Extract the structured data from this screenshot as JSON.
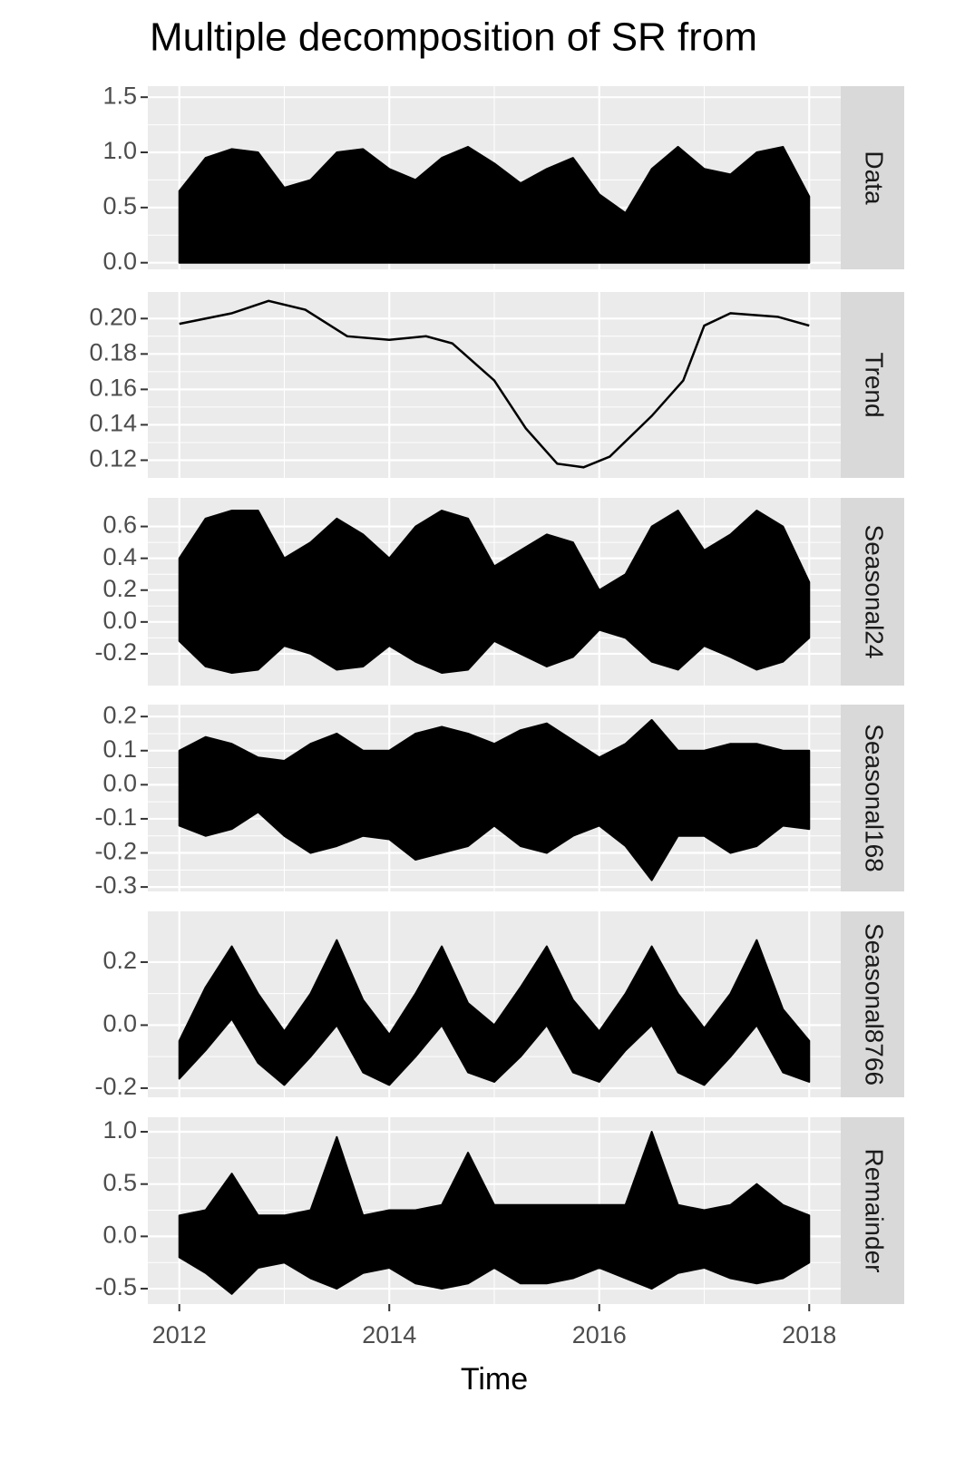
{
  "chart_data": [
    {
      "type": "band",
      "title": "Multiple decomposition of  SR from",
      "strip": "Data",
      "ylim": [
        -0.06,
        1.6
      ],
      "yticks": [
        {
          "value": 0,
          "label": "0.0"
        },
        0.5,
        {
          "value": 1,
          "label": "1.0"
        },
        1.5
      ],
      "x": [
        2012,
        2012.25,
        2012.5,
        2012.75,
        2013,
        2013.25,
        2013.5,
        2013.75,
        2014,
        2014.25,
        2014.5,
        2014.75,
        2015,
        2015.25,
        2015.5,
        2015.75,
        2016,
        2016.25,
        2016.5,
        2016.75,
        2017,
        2017.25,
        2017.5,
        2017.75,
        2018
      ],
      "high": [
        0.65,
        0.95,
        1.03,
        1.0,
        0.68,
        0.75,
        1.0,
        1.03,
        0.85,
        0.75,
        0.95,
        1.05,
        0.9,
        0.72,
        0.85,
        0.95,
        0.62,
        0.45,
        0.85,
        1.05,
        0.85,
        0.8,
        1.0,
        1.05,
        0.6
      ],
      "low": [
        0,
        0,
        0,
        0,
        0,
        0,
        0,
        0,
        0,
        0,
        0,
        0,
        0,
        0,
        0,
        0,
        0,
        0,
        0,
        0,
        0,
        0,
        0,
        0,
        0
      ],
      "color": "#000000"
    },
    {
      "type": "line",
      "strip": "Trend",
      "ylim": [
        0.11,
        0.215
      ],
      "yticks": [
        0.12,
        0.14,
        0.16,
        0.18,
        {
          "value": 0.2,
          "label": "0.20"
        }
      ],
      "x": [
        2012,
        2012.5,
        2012.85,
        2013.2,
        2013.6,
        2014.0,
        2014.35,
        2014.6,
        2015.0,
        2015.3,
        2015.6,
        2015.85,
        2016.1,
        2016.5,
        2016.8,
        2017.0,
        2017.25,
        2017.7,
        2018.0
      ],
      "values": [
        0.197,
        0.203,
        0.21,
        0.205,
        0.19,
        0.188,
        0.19,
        0.186,
        0.165,
        0.138,
        0.118,
        0.116,
        0.122,
        0.145,
        0.165,
        0.196,
        0.203,
        0.201,
        0.196
      ],
      "color": "#000000"
    },
    {
      "type": "band",
      "strip": "Seasonal24",
      "ylim": [
        -0.4,
        0.78
      ],
      "yticks": [
        -0.2,
        {
          "value": 0,
          "label": "0.0"
        },
        0.2,
        0.4,
        0.6
      ],
      "x": [
        2012,
        2012.25,
        2012.5,
        2012.75,
        2013,
        2013.25,
        2013.5,
        2013.75,
        2014,
        2014.25,
        2014.5,
        2014.75,
        2015,
        2015.25,
        2015.5,
        2015.75,
        2016,
        2016.25,
        2016.5,
        2016.75,
        2017,
        2017.25,
        2017.5,
        2017.75,
        2018
      ],
      "high": [
        0.4,
        0.65,
        0.7,
        0.7,
        0.4,
        0.5,
        0.65,
        0.55,
        0.4,
        0.6,
        0.7,
        0.65,
        0.35,
        0.45,
        0.55,
        0.5,
        0.2,
        0.3,
        0.6,
        0.7,
        0.45,
        0.55,
        0.7,
        0.6,
        0.25
      ],
      "low": [
        -0.12,
        -0.28,
        -0.32,
        -0.3,
        -0.15,
        -0.2,
        -0.3,
        -0.28,
        -0.15,
        -0.25,
        -0.32,
        -0.3,
        -0.12,
        -0.2,
        -0.28,
        -0.22,
        -0.05,
        -0.1,
        -0.25,
        -0.3,
        -0.15,
        -0.22,
        -0.3,
        -0.25,
        -0.1
      ],
      "color": "#000000"
    },
    {
      "type": "band",
      "strip": "Seasonal168",
      "ylim": [
        -0.313,
        0.235
      ],
      "yticks": [
        -0.3,
        -0.2,
        -0.1,
        {
          "value": 0,
          "label": "0.0"
        },
        0.1,
        0.2
      ],
      "x": [
        2012,
        2012.25,
        2012.5,
        2012.75,
        2013,
        2013.25,
        2013.5,
        2013.75,
        2014,
        2014.25,
        2014.5,
        2014.75,
        2015,
        2015.25,
        2015.5,
        2015.75,
        2016,
        2016.25,
        2016.5,
        2016.75,
        2017,
        2017.25,
        2017.5,
        2017.75,
        2018
      ],
      "high": [
        0.1,
        0.14,
        0.12,
        0.08,
        0.07,
        0.12,
        0.15,
        0.1,
        0.1,
        0.15,
        0.17,
        0.15,
        0.12,
        0.16,
        0.18,
        0.13,
        0.08,
        0.12,
        0.19,
        0.1,
        0.1,
        0.12,
        0.12,
        0.1,
        0.1
      ],
      "low": [
        -0.12,
        -0.15,
        -0.13,
        -0.08,
        -0.15,
        -0.2,
        -0.18,
        -0.15,
        -0.16,
        -0.22,
        -0.2,
        -0.18,
        -0.12,
        -0.18,
        -0.2,
        -0.15,
        -0.12,
        -0.18,
        -0.28,
        -0.15,
        -0.15,
        -0.2,
        -0.18,
        -0.12,
        -0.13
      ],
      "color": "#000000"
    },
    {
      "type": "band",
      "strip": "Seasonal8766",
      "ylim": [
        -0.229,
        0.361
      ],
      "yticks": [
        -0.2,
        {
          "value": 0,
          "label": "0.0"
        },
        0.2
      ],
      "x": [
        2012,
        2012.25,
        2012.5,
        2012.75,
        2013,
        2013.25,
        2013.5,
        2013.75,
        2014,
        2014.25,
        2014.5,
        2014.75,
        2015,
        2015.25,
        2015.5,
        2015.75,
        2016,
        2016.25,
        2016.5,
        2016.75,
        2017,
        2017.25,
        2017.5,
        2017.75,
        2018
      ],
      "high": [
        -0.05,
        0.12,
        0.25,
        0.1,
        -0.02,
        0.1,
        0.27,
        0.08,
        -0.03,
        0.1,
        0.25,
        0.07,
        0.0,
        0.12,
        0.25,
        0.08,
        -0.02,
        0.1,
        0.25,
        0.1,
        -0.01,
        0.1,
        0.27,
        0.05,
        -0.05
      ],
      "low": [
        -0.17,
        -0.08,
        0.02,
        -0.12,
        -0.19,
        -0.1,
        0.0,
        -0.15,
        -0.19,
        -0.1,
        0.0,
        -0.15,
        -0.18,
        -0.1,
        0.0,
        -0.15,
        -0.18,
        -0.08,
        0.0,
        -0.15,
        -0.19,
        -0.1,
        0.0,
        -0.15,
        -0.18
      ],
      "color": "#000000"
    },
    {
      "type": "band",
      "strip": "Remainder",
      "xlabel": "Time",
      "xlim": [
        2011.7,
        2018.3
      ],
      "xticks": [
        2012,
        2014,
        2016,
        2018
      ],
      "ylim": [
        -0.647,
        1.139
      ],
      "yticks": [
        -0.5,
        {
          "value": 0,
          "label": "0.0"
        },
        0.5,
        {
          "value": 1,
          "label": "1.0"
        }
      ],
      "x": [
        2012,
        2012.25,
        2012.5,
        2012.75,
        2013,
        2013.25,
        2013.5,
        2013.75,
        2014,
        2014.25,
        2014.5,
        2014.75,
        2015,
        2015.25,
        2015.5,
        2015.75,
        2016,
        2016.25,
        2016.5,
        2016.75,
        2017,
        2017.25,
        2017.5,
        2017.75,
        2018
      ],
      "high": [
        0.2,
        0.25,
        0.6,
        0.2,
        0.2,
        0.25,
        0.95,
        0.2,
        0.25,
        0.25,
        0.3,
        0.8,
        0.3,
        0.3,
        0.3,
        0.3,
        0.3,
        0.3,
        1.0,
        0.3,
        0.25,
        0.3,
        0.5,
        0.3,
        0.2
      ],
      "low": [
        -0.2,
        -0.35,
        -0.55,
        -0.3,
        -0.25,
        -0.4,
        -0.5,
        -0.35,
        -0.3,
        -0.45,
        -0.5,
        -0.45,
        -0.3,
        -0.45,
        -0.45,
        -0.4,
        -0.3,
        -0.4,
        -0.5,
        -0.35,
        -0.3,
        -0.4,
        -0.45,
        -0.4,
        -0.25
      ],
      "color": "#000000"
    }
  ]
}
